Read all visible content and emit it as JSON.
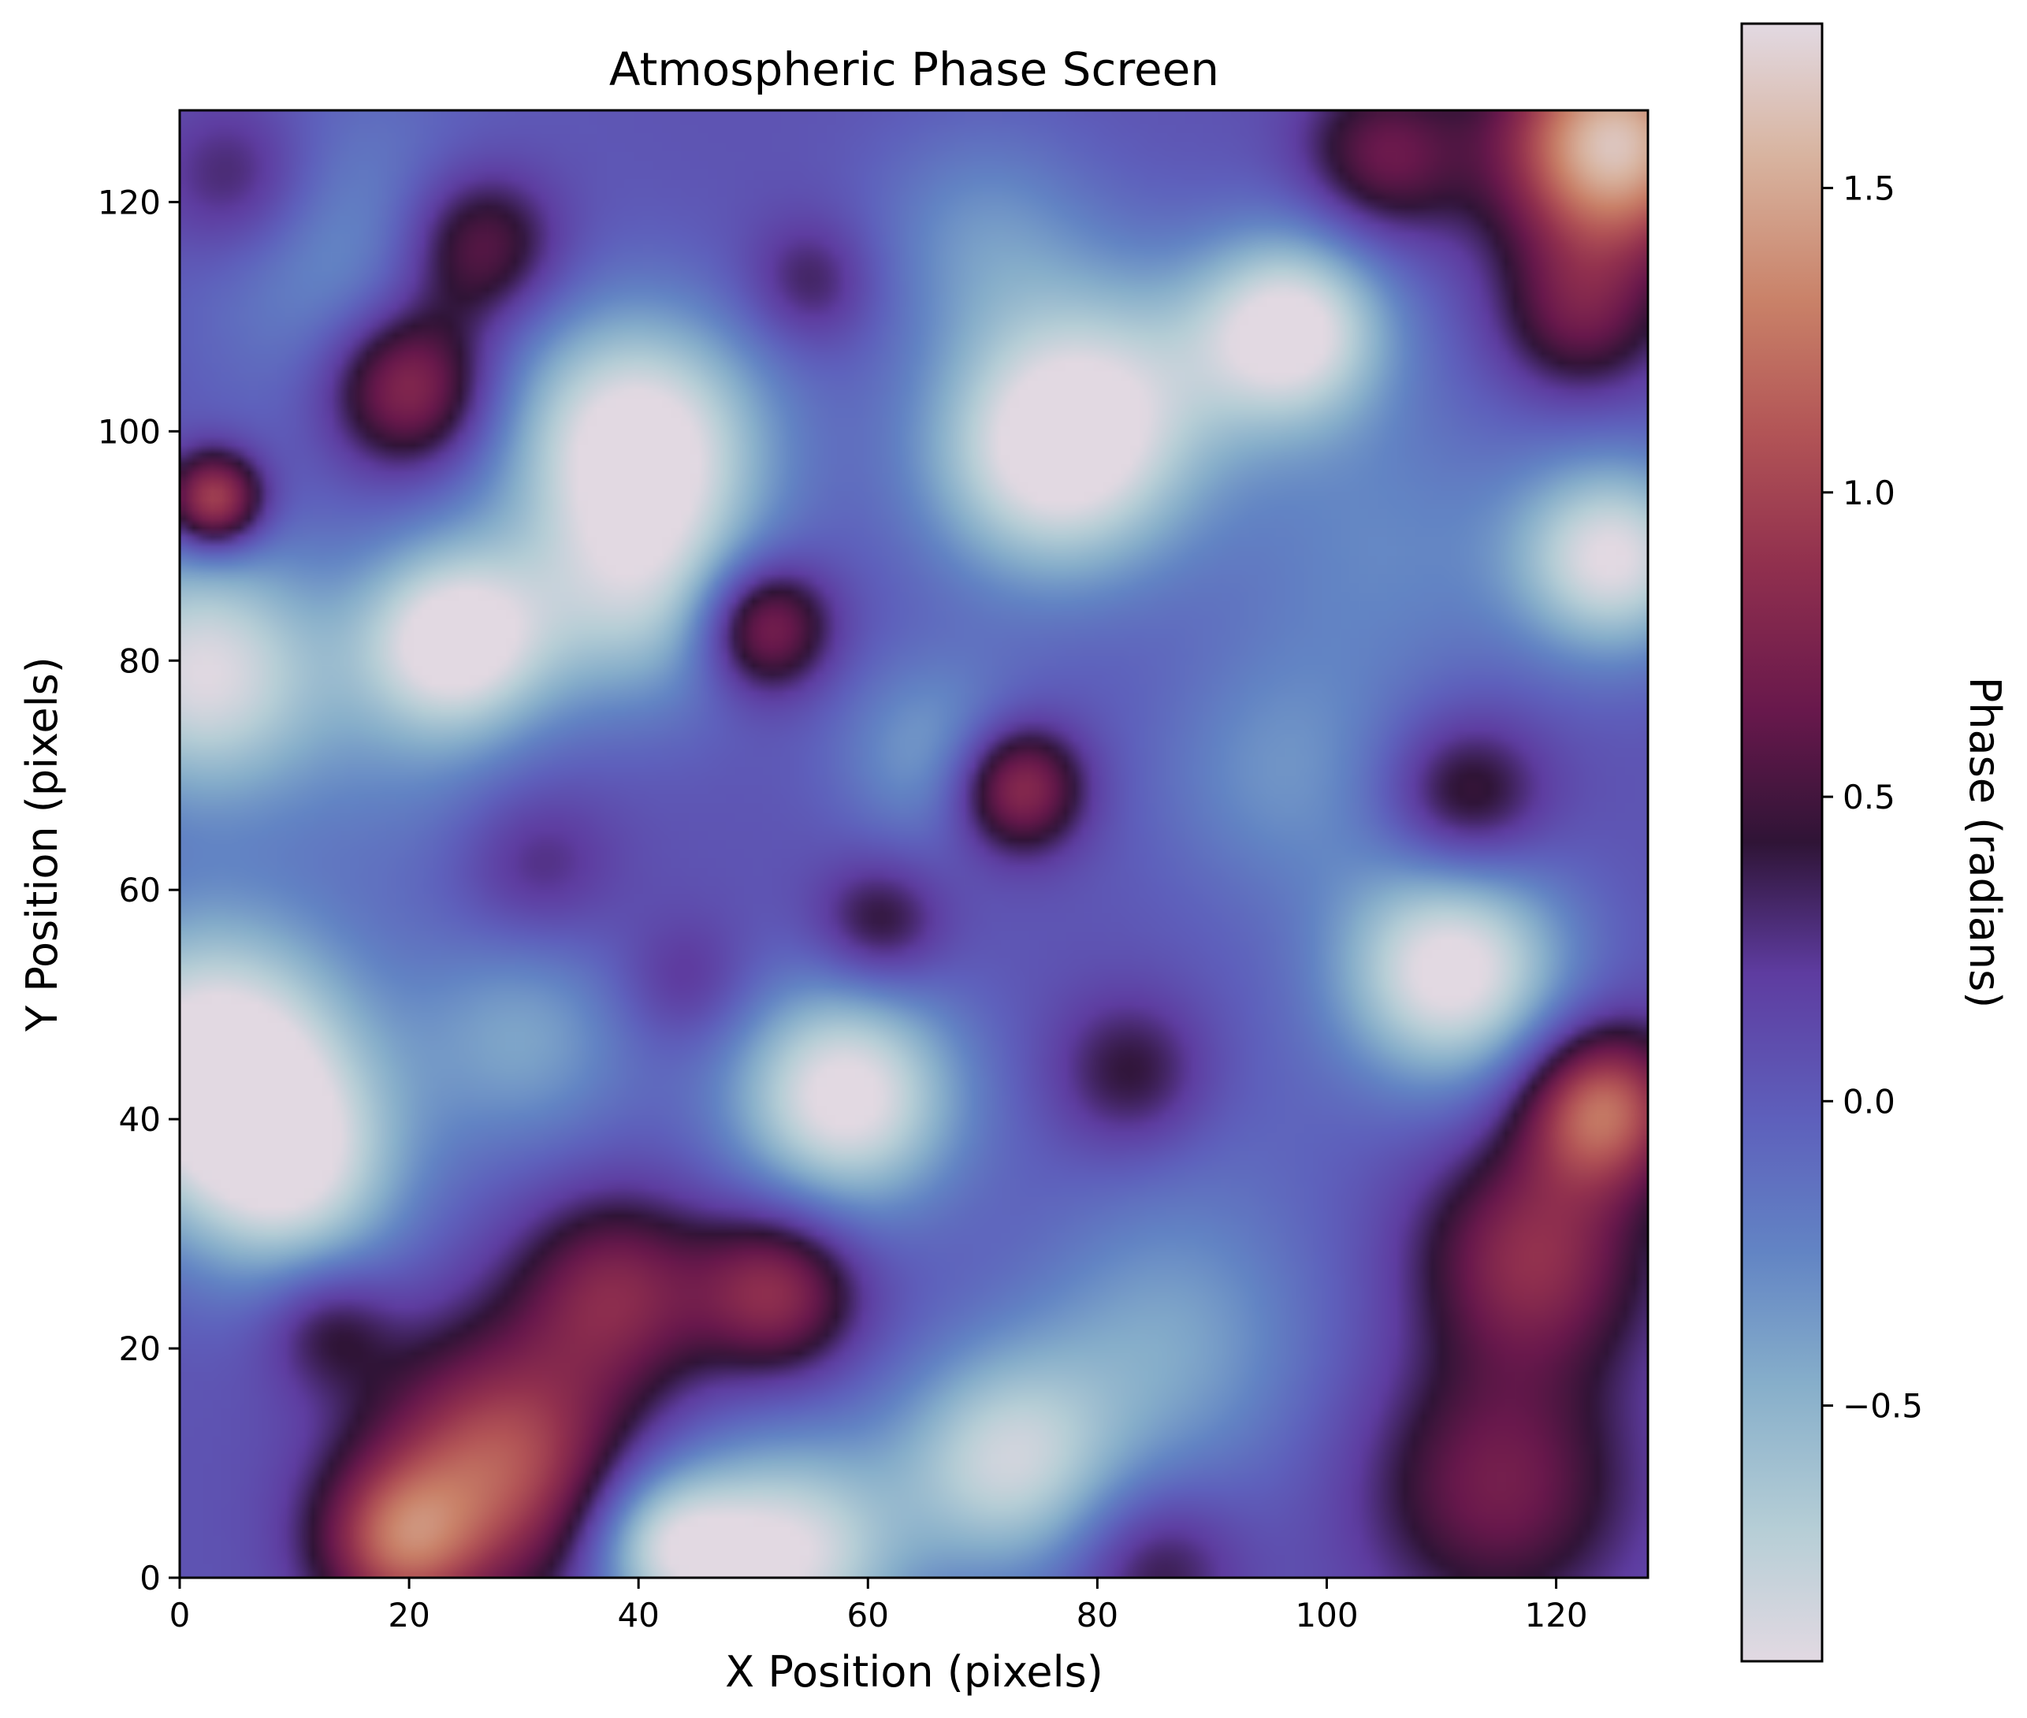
{
  "chart_data": {
    "type": "heatmap",
    "title": "Atmospheric Phase Screen",
    "xlabel": "X Position (pixels)",
    "ylabel": "Y Position (pixels)",
    "xlim": [
      0,
      128
    ],
    "ylim": [
      0,
      128
    ],
    "xticks": [
      0,
      20,
      40,
      60,
      80,
      100,
      120
    ],
    "yticks": [
      0,
      20,
      40,
      60,
      80,
      100,
      120
    ],
    "grid": false,
    "origin": "lower",
    "colormap": "twilight",
    "colorbar": {
      "label": "Phase (radians)",
      "range": [
        -0.92,
        1.77
      ],
      "ticks": [
        -0.5,
        0.0,
        0.5,
        1.0,
        1.5
      ],
      "tick_labels": [
        "−0.5",
        "0.0",
        "0.5",
        "1.0",
        "1.5"
      ],
      "placement": "right"
    },
    "blob_note": "value field approximated as base + sum of gaussian features, each feature = [x, y, sigma, amplitude] in data units",
    "base_value": 0.05,
    "features": [
      [
        53,
        2,
        7,
        -0.95
      ],
      [
        42,
        3,
        5,
        -0.8
      ],
      [
        72,
        10,
        7,
        -0.8
      ],
      [
        86,
        20,
        9,
        -0.45
      ],
      [
        58,
        42,
        7,
        -1.05
      ],
      [
        3,
        45,
        9,
        -1.15
      ],
      [
        10,
        35,
        7,
        -0.7
      ],
      [
        30,
        47,
        7,
        -0.45
      ],
      [
        111,
        53,
        7,
        -1.05
      ],
      [
        96,
        70,
        8,
        -0.35
      ],
      [
        66,
        72,
        6,
        -0.45
      ],
      [
        2,
        79,
        8,
        -0.95
      ],
      [
        24,
        82,
        6,
        -1.05
      ],
      [
        40,
        85,
        7,
        -0.6
      ],
      [
        40,
        99,
        8,
        -1.1
      ],
      [
        76,
        98,
        8,
        -1.0
      ],
      [
        83,
        105,
        8,
        -0.4
      ],
      [
        97,
        109,
        6,
        -1.0
      ],
      [
        125,
        89,
        6,
        -0.95
      ],
      [
        70,
        117,
        7,
        -0.35
      ],
      [
        16,
        115,
        10,
        -0.4
      ],
      [
        105,
        90,
        10,
        -0.3
      ],
      [
        20,
        70,
        8,
        -0.2
      ],
      [
        90,
        40,
        10,
        -0.1
      ],
      [
        20,
        104,
        5,
        0.95
      ],
      [
        26,
        116,
        5,
        0.75
      ],
      [
        51,
        83,
        4,
        0.85
      ],
      [
        73,
        69,
        4,
        0.95
      ],
      [
        3,
        94,
        3,
        1.1
      ],
      [
        124,
        41,
        5,
        1.15
      ],
      [
        118,
        28,
        7,
        0.8
      ],
      [
        112,
        68,
        5,
        0.55
      ],
      [
        105,
        124,
        5,
        0.6
      ],
      [
        125,
        125,
        7,
        1.6
      ],
      [
        122,
        110,
        5,
        0.55
      ],
      [
        28,
        10,
        8,
        1.05
      ],
      [
        19,
        3,
        5,
        0.9
      ],
      [
        38,
        25,
        6,
        0.7
      ],
      [
        52,
        25,
        5,
        0.8
      ],
      [
        115,
        8,
        8,
        0.65
      ],
      [
        13,
        22,
        4,
        0.4
      ],
      [
        61,
        57,
        4,
        0.45
      ],
      [
        83,
        44,
        5,
        0.45
      ],
      [
        85,
        1,
        5,
        0.4
      ],
      [
        5,
        122,
        5,
        0.4
      ],
      [
        55,
        113,
        4,
        0.35
      ],
      [
        31,
        62,
        5,
        0.3
      ],
      [
        44,
        52,
        4,
        0.25
      ]
    ]
  }
}
